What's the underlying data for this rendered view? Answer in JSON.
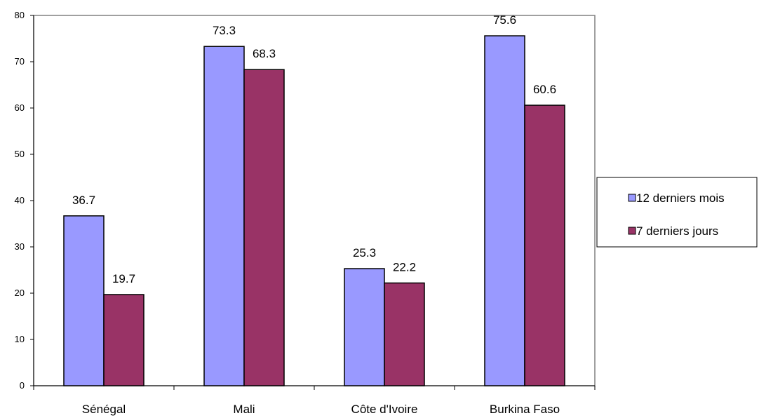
{
  "chart_data": {
    "type": "bar",
    "categories": [
      "Sénégal",
      "Mali",
      "Côte d'Ivoire",
      "Burkina Faso"
    ],
    "series": [
      {
        "name": "12 derniers mois",
        "values": [
          36.7,
          73.3,
          25.3,
          75.6
        ],
        "labels": [
          "36.7",
          "73.3",
          "25.3",
          "75.6"
        ],
        "color": "#9999ff"
      },
      {
        "name": "7 derniers jours",
        "values": [
          19.7,
          68.3,
          22.2,
          60.6
        ],
        "labels": [
          "19.7",
          "68.3",
          "22.2",
          "60.6"
        ],
        "color": "#993366"
      }
    ],
    "yticks": [
      "0",
      "10",
      "20",
      "30",
      "40",
      "50",
      "60",
      "70",
      "80"
    ],
    "ylim": [
      0,
      80
    ],
    "grid": false,
    "legend": "right"
  }
}
